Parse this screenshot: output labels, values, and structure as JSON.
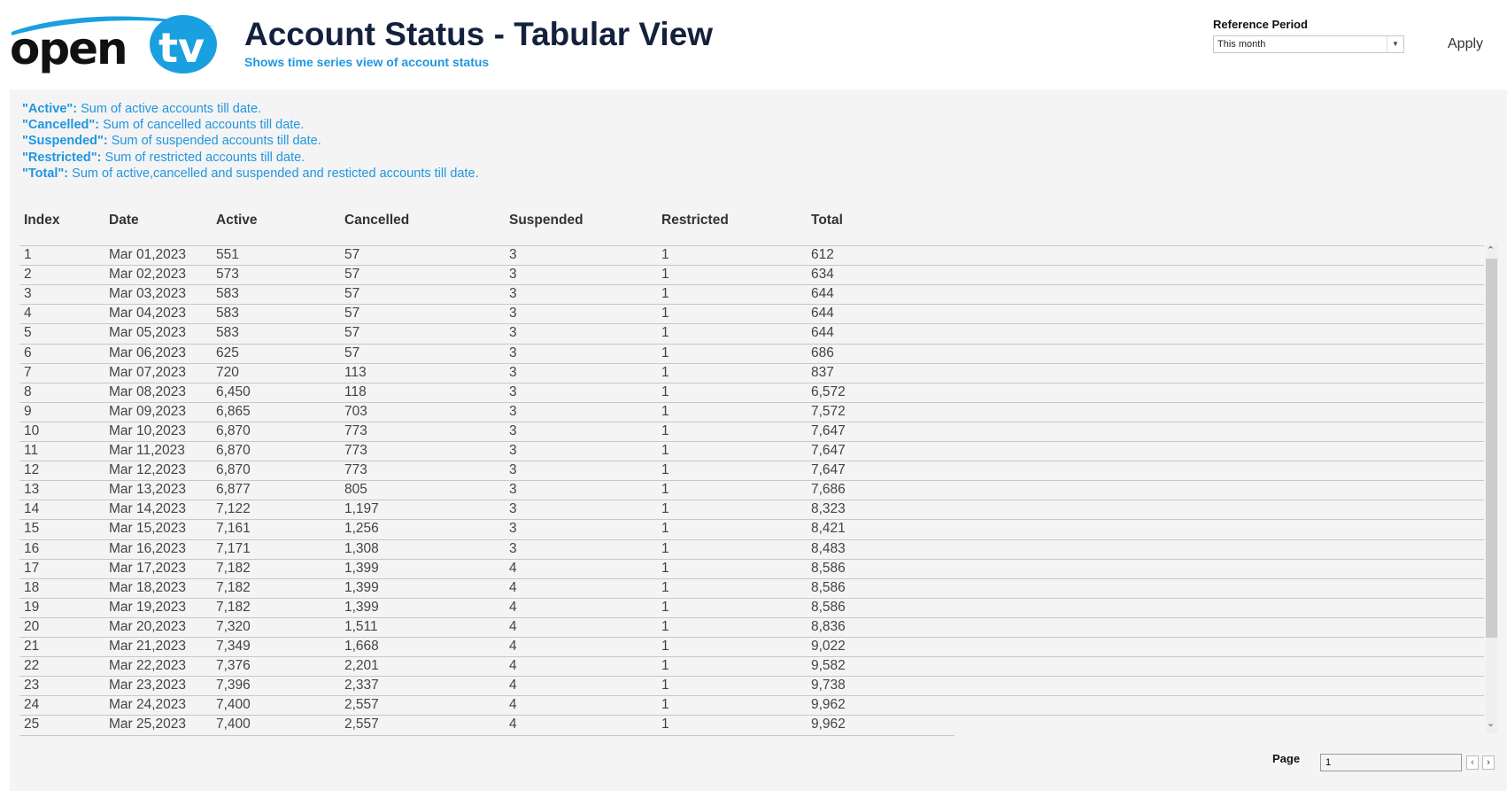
{
  "header": {
    "logo_text": "opentv",
    "title": "Account Status - Tabular View",
    "subtitle": "Shows time series view of account status"
  },
  "controls": {
    "reference_period_label": "Reference Period",
    "reference_period_value": "This month",
    "apply_label": "Apply"
  },
  "legend": [
    {
      "term": "\"Active\":",
      "desc": " Sum of active accounts till date."
    },
    {
      "term": "\"Cancelled\":",
      "desc": " Sum of cancelled accounts till date."
    },
    {
      "term": "\"Suspended\":",
      "desc": " Sum of suspended accounts till date."
    },
    {
      "term": "\"Restricted\":",
      "desc": " Sum of restricted accounts till date."
    },
    {
      "term": "\"Total\":",
      "desc": " Sum of active,cancelled and suspended and resticted accounts till date."
    }
  ],
  "table": {
    "columns": [
      "Index",
      "Date",
      "Active",
      "Cancelled",
      "Suspended",
      "Restricted",
      "Total"
    ],
    "rows": [
      [
        "1",
        "Mar 01,2023",
        "551",
        "57",
        "3",
        "1",
        "612"
      ],
      [
        "2",
        "Mar 02,2023",
        "573",
        "57",
        "3",
        "1",
        "634"
      ],
      [
        "3",
        "Mar 03,2023",
        "583",
        "57",
        "3",
        "1",
        "644"
      ],
      [
        "4",
        "Mar 04,2023",
        "583",
        "57",
        "3",
        "1",
        "644"
      ],
      [
        "5",
        "Mar 05,2023",
        "583",
        "57",
        "3",
        "1",
        "644"
      ],
      [
        "6",
        "Mar 06,2023",
        "625",
        "57",
        "3",
        "1",
        "686"
      ],
      [
        "7",
        "Mar 07,2023",
        "720",
        "113",
        "3",
        "1",
        "837"
      ],
      [
        "8",
        "Mar 08,2023",
        "6,450",
        "118",
        "3",
        "1",
        "6,572"
      ],
      [
        "9",
        "Mar 09,2023",
        "6,865",
        "703",
        "3",
        "1",
        "7,572"
      ],
      [
        "10",
        "Mar 10,2023",
        "6,870",
        "773",
        "3",
        "1",
        "7,647"
      ],
      [
        "11",
        "Mar 11,2023",
        "6,870",
        "773",
        "3",
        "1",
        "7,647"
      ],
      [
        "12",
        "Mar 12,2023",
        "6,870",
        "773",
        "3",
        "1",
        "7,647"
      ],
      [
        "13",
        "Mar 13,2023",
        "6,877",
        "805",
        "3",
        "1",
        "7,686"
      ],
      [
        "14",
        "Mar 14,2023",
        "7,122",
        "1,197",
        "3",
        "1",
        "8,323"
      ],
      [
        "15",
        "Mar 15,2023",
        "7,161",
        "1,256",
        "3",
        "1",
        "8,421"
      ],
      [
        "16",
        "Mar 16,2023",
        "7,171",
        "1,308",
        "3",
        "1",
        "8,483"
      ],
      [
        "17",
        "Mar 17,2023",
        "7,182",
        "1,399",
        "4",
        "1",
        "8,586"
      ],
      [
        "18",
        "Mar 18,2023",
        "7,182",
        "1,399",
        "4",
        "1",
        "8,586"
      ],
      [
        "19",
        "Mar 19,2023",
        "7,182",
        "1,399",
        "4",
        "1",
        "8,586"
      ],
      [
        "20",
        "Mar 20,2023",
        "7,320",
        "1,511",
        "4",
        "1",
        "8,836"
      ],
      [
        "21",
        "Mar 21,2023",
        "7,349",
        "1,668",
        "4",
        "1",
        "9,022"
      ],
      [
        "22",
        "Mar 22,2023",
        "7,376",
        "2,201",
        "4",
        "1",
        "9,582"
      ],
      [
        "23",
        "Mar 23,2023",
        "7,396",
        "2,337",
        "4",
        "1",
        "9,738"
      ],
      [
        "24",
        "Mar 24,2023",
        "7,400",
        "2,557",
        "4",
        "1",
        "9,962"
      ],
      [
        "25",
        "Mar 25,2023",
        "7,400",
        "2,557",
        "4",
        "1",
        "9,962"
      ]
    ]
  },
  "pagination": {
    "label": "Page",
    "value": "1"
  },
  "colors": {
    "accent": "#2196e0",
    "title": "#14213d",
    "panel": "#f4f4f4",
    "logo_blue": "#1a9fe0"
  }
}
